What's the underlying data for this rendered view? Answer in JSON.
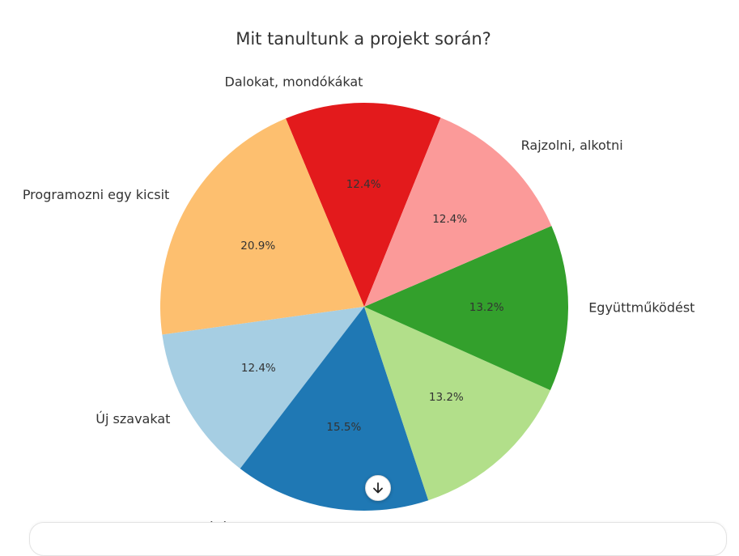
{
  "chart_data": {
    "type": "pie",
    "title": "Mit tanultunk a projekt során?",
    "slices": [
      {
        "label": "Dalokat, mondókákat",
        "value": 12.4,
        "pct_label": "12.4%",
        "color": "#e31a1c"
      },
      {
        "label": "Programozni egy kicsit",
        "value": 20.9,
        "pct_label": "20.9%",
        "color": "#fdbf6f"
      },
      {
        "label": "Új szavakat",
        "value": 12.4,
        "pct_label": "12.4%",
        "color": "#a6cee3"
      },
      {
        "label": "Játékos feladatokat",
        "value": 15.5,
        "pct_label": "15.5%",
        "color": "#1f78b4"
      },
      {
        "label": "",
        "value": 13.2,
        "pct_label": "13.2%",
        "color": "#b2df8a"
      },
      {
        "label": "Együttműködést",
        "value": 13.2,
        "pct_label": "13.2%",
        "color": "#33a02c"
      },
      {
        "label": "Rajzolni, alkotni",
        "value": 12.4,
        "pct_label": "12.4%",
        "color": "#fb9a99"
      }
    ],
    "start_angle_deg": 68,
    "direction": "counterclockwise",
    "legend": "none"
  },
  "ui": {
    "scroll_button_icon": "arrow-down-icon"
  }
}
